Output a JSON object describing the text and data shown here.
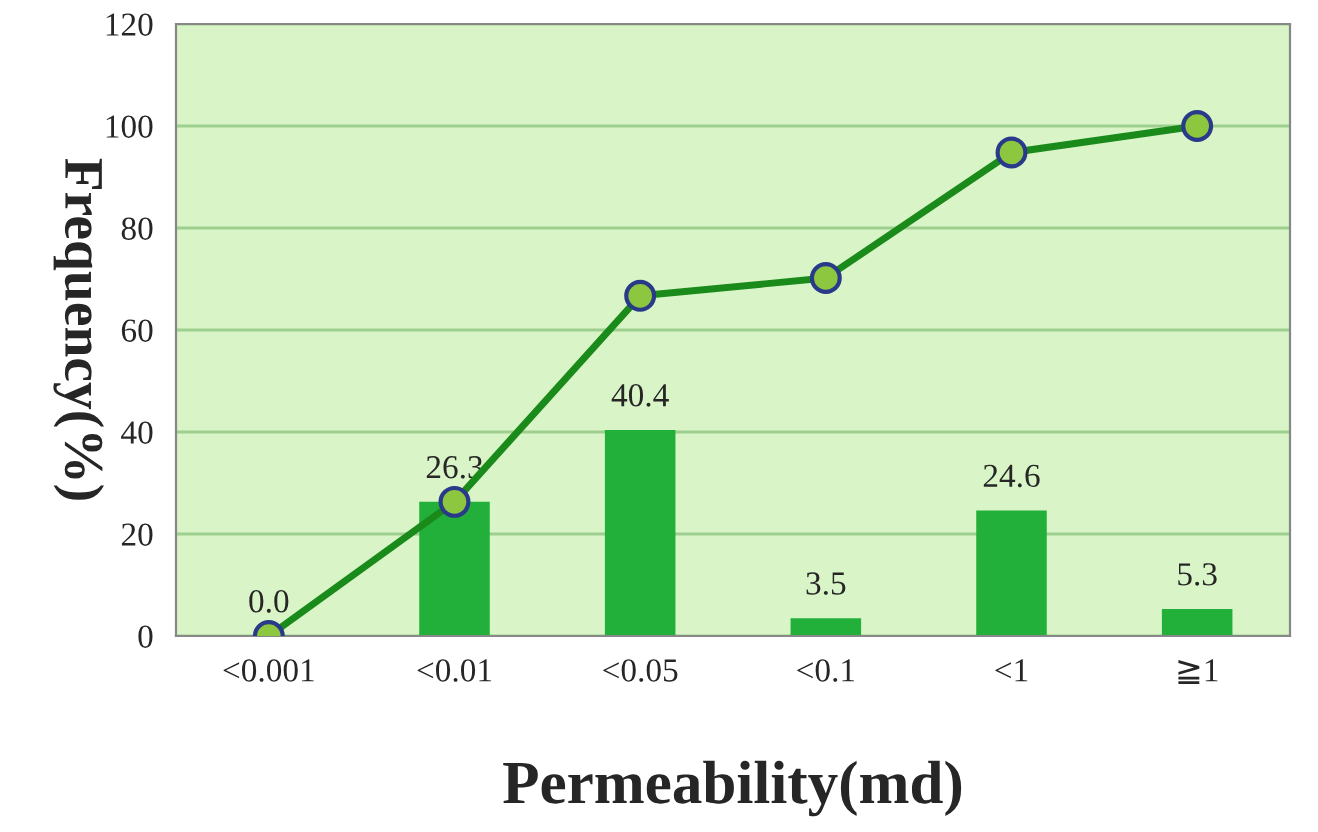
{
  "chart_data": {
    "type": "bar",
    "xlabel": "Permeability(md)",
    "ylabel": "Frequency(%)",
    "categories": [
      "<0.001",
      "<0.01",
      "<0.05",
      "<0.1",
      "<1",
      "≧1"
    ],
    "series": [
      {
        "color": "#22b03a",
        "values": [
          0.0,
          26.3,
          40.4,
          3.5,
          24.6,
          5.3
        ],
        "value_labels": [
          "0.0",
          "26.3",
          "40.4",
          "3.5",
          "24.6",
          "5.3"
        ]
      },
      {
        "type": "line",
        "color": "#1a8a1a",
        "values": [
          0,
          26.3,
          66.7,
          70.2,
          94.8,
          100
        ],
        "marker": "circle"
      }
    ],
    "ylim": [
      0,
      120
    ],
    "yticks": [
      0,
      20,
      40,
      60,
      80,
      100,
      120
    ],
    "grid": "y"
  }
}
